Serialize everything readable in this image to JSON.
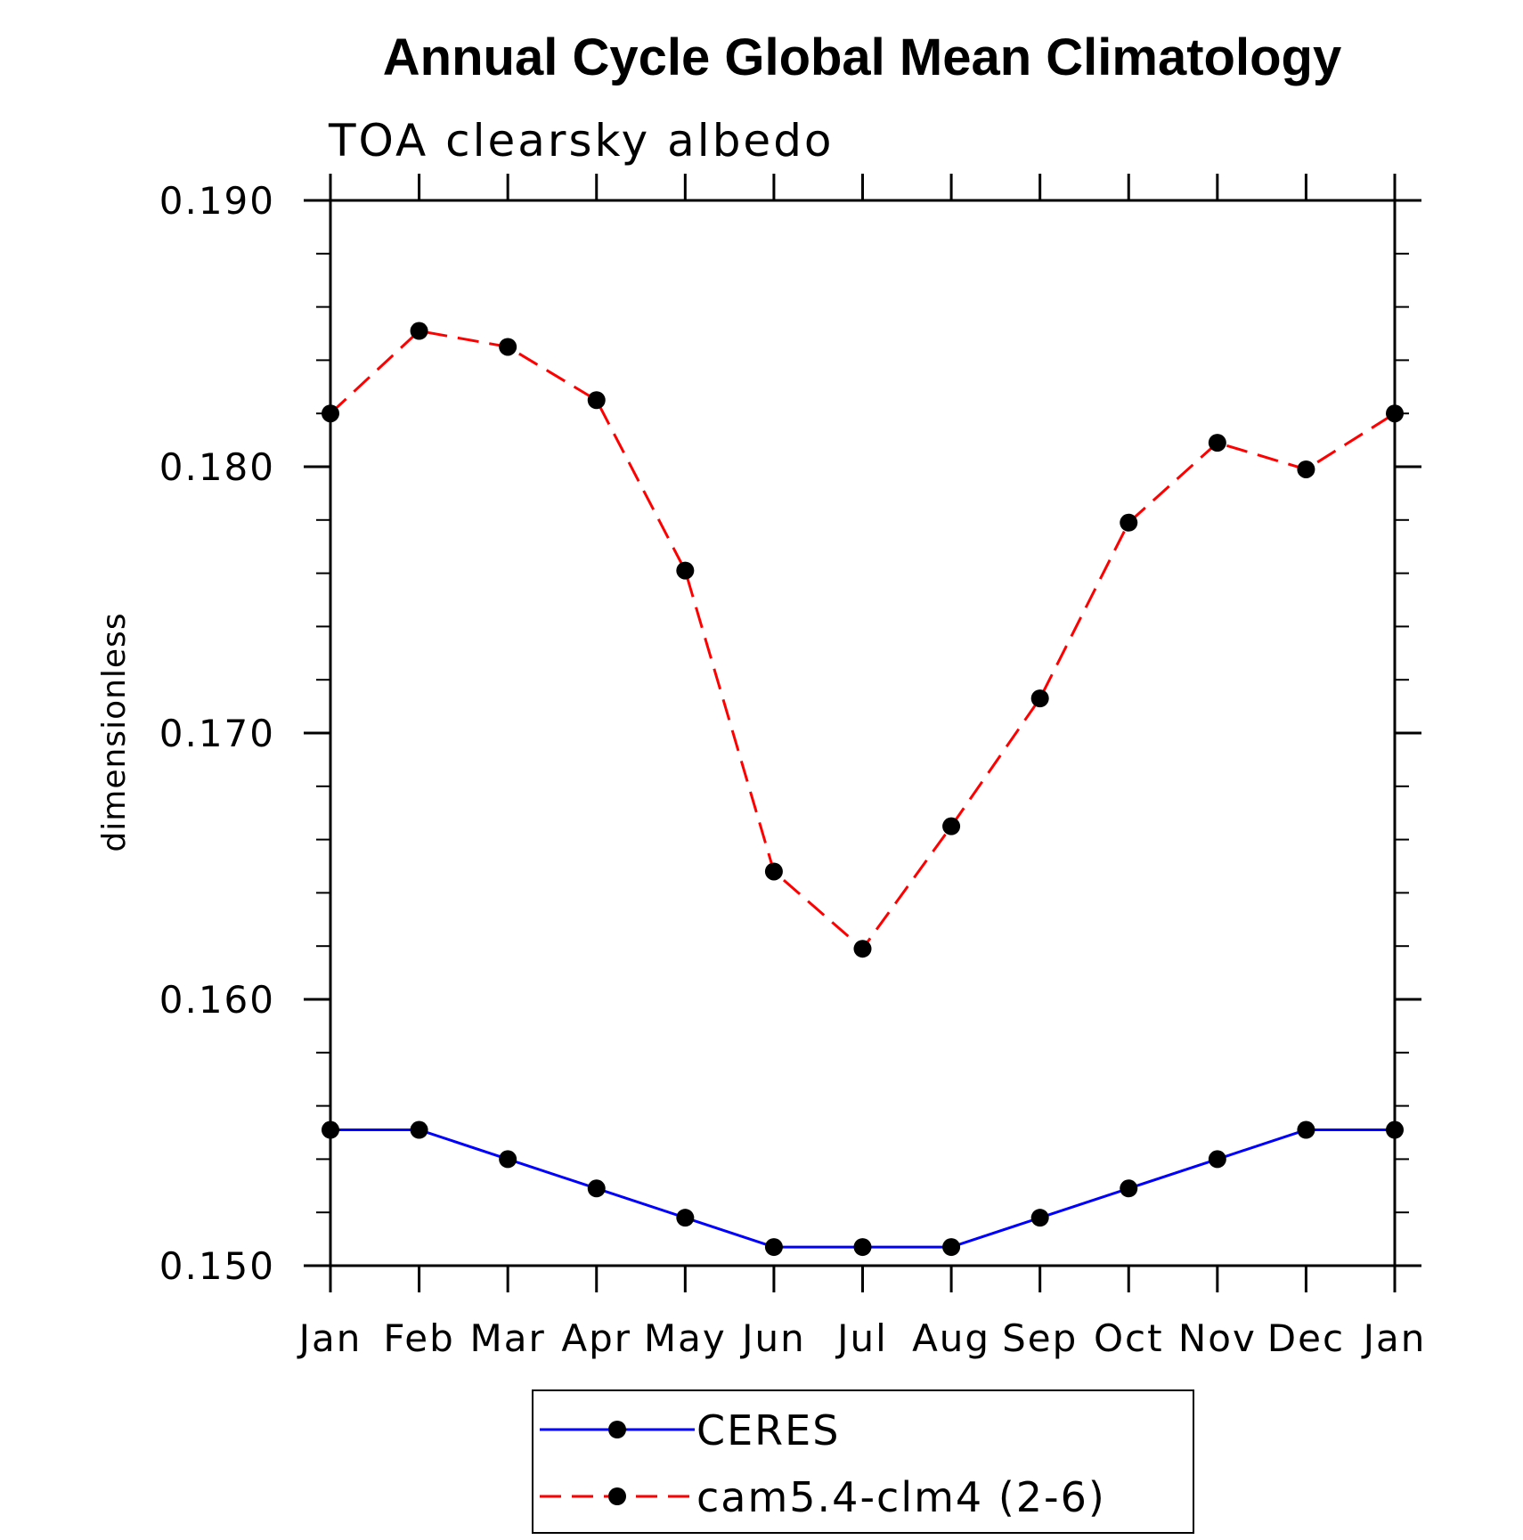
{
  "chart_data": {
    "type": "line",
    "title": "Annual Cycle Global Mean Climatology",
    "subtitle": "TOA clearsky albedo",
    "ylabel": "dimensionless",
    "xlabel": "",
    "categories": [
      "Jan",
      "Feb",
      "Mar",
      "Apr",
      "May",
      "Jun",
      "Jul",
      "Aug",
      "Sep",
      "Oct",
      "Nov",
      "Dec",
      "Jan"
    ],
    "ylim": [
      0.15,
      0.19
    ],
    "yticks": [
      "0.150",
      "0.160",
      "0.170",
      "0.180",
      "0.190"
    ],
    "ytick_values": [
      0.15,
      0.16,
      0.17,
      0.18,
      0.19
    ],
    "y_minor_step": 0.002,
    "legend_position": "bottom-center",
    "series": [
      {
        "name": "CERES",
        "color": "#0000ff",
        "dash": "solid",
        "marker": "filled-circle",
        "values": [
          0.1551,
          0.1551,
          0.154,
          0.1529,
          0.1518,
          0.1507,
          0.1507,
          0.1507,
          0.1518,
          0.1529,
          0.154,
          0.1551,
          0.1551
        ]
      },
      {
        "name": "cam5.4-clm4 (2-6)",
        "color": "#ff0000",
        "dash": "dashed",
        "marker": "filled-circle",
        "values": [
          0.182,
          0.1851,
          0.1845,
          0.1825,
          0.1761,
          0.1648,
          0.1619,
          0.1665,
          0.1713,
          0.1779,
          0.1809,
          0.1799,
          0.182
        ]
      }
    ]
  }
}
